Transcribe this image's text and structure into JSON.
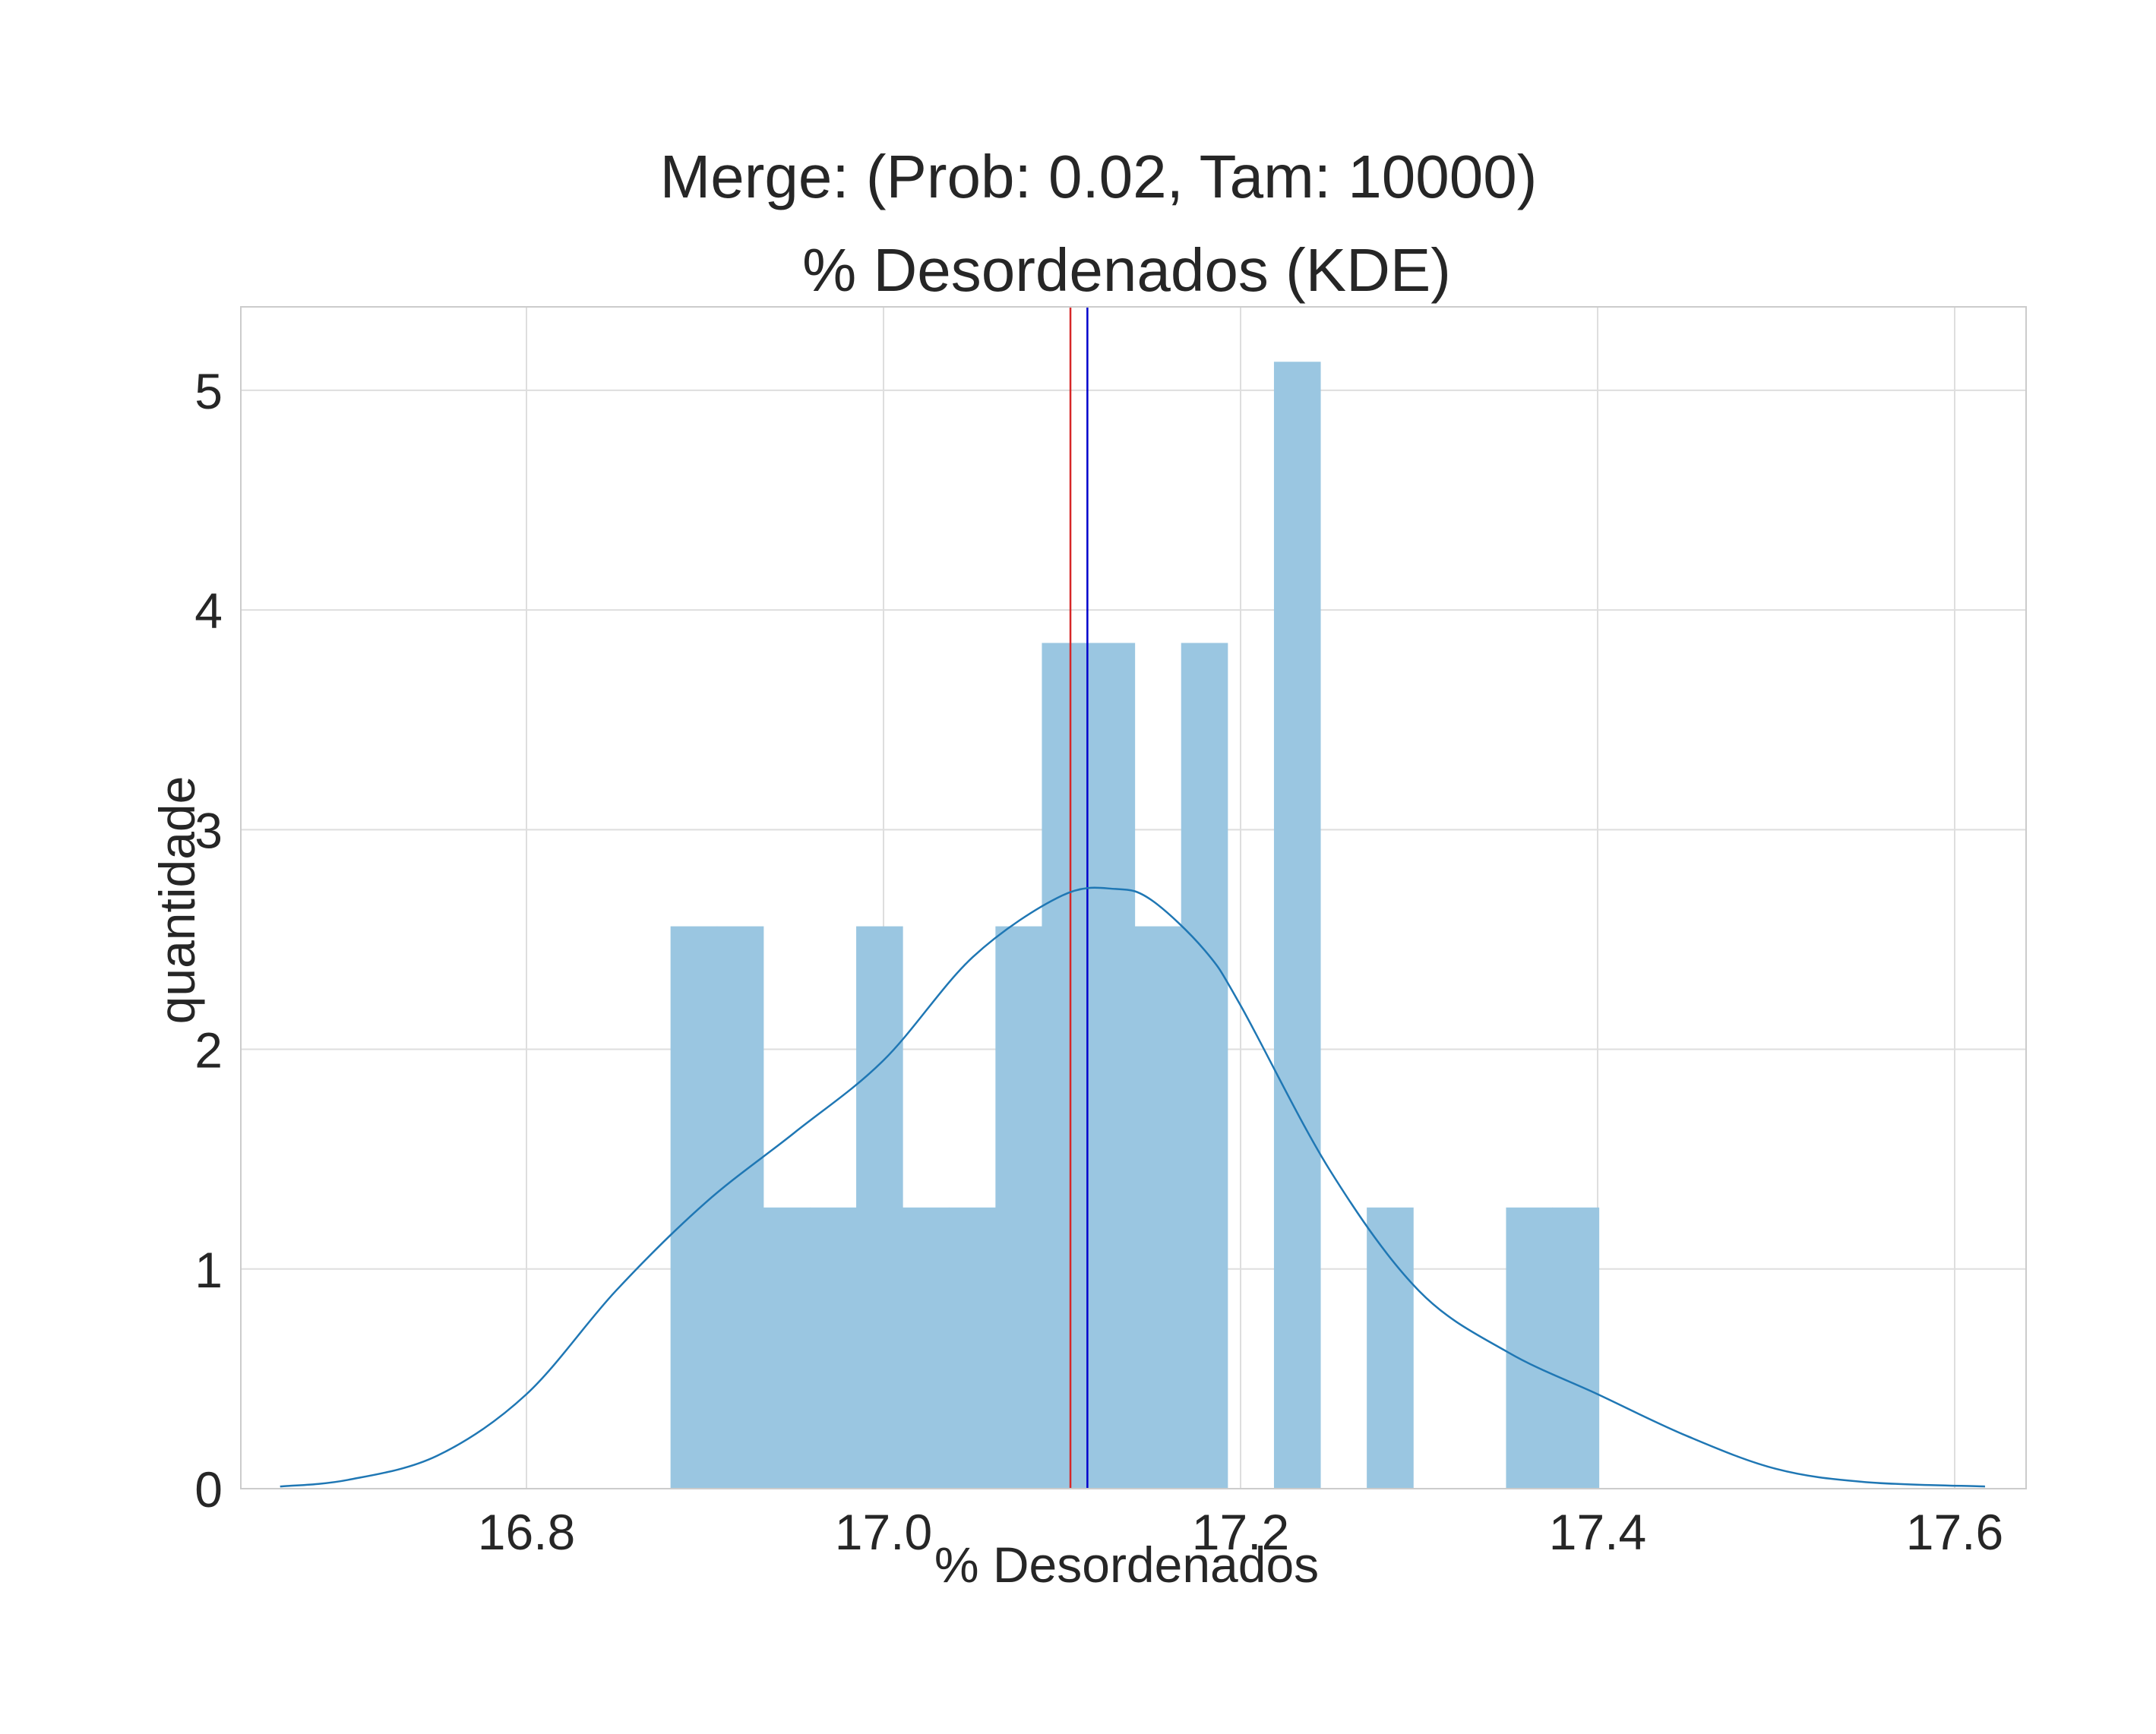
{
  "chart_data": {
    "type": "bar",
    "title": "Merge: (Prob: 0.02, Tam: 10000)",
    "subtitle": "% Desordenados (KDE)",
    "xlabel": "% Desordenados",
    "ylabel": "quantidade",
    "xlim": [
      16.64,
      17.64
    ],
    "ylim": [
      0,
      5.38
    ],
    "xticks": [
      16.8,
      17.0,
      17.2,
      17.4,
      17.6
    ],
    "xtick_labels": [
      "16.8",
      "17.0",
      "17.2",
      "17.4",
      "17.6"
    ],
    "yticks": [
      0,
      1,
      2,
      3,
      4,
      5
    ],
    "ytick_labels": [
      "0",
      "1",
      "2",
      "3",
      "4",
      "5"
    ],
    "grid": true,
    "histogram": {
      "bin_edges": [
        16.8807,
        16.9067,
        16.9327,
        16.9587,
        16.9847,
        17.0107,
        17.0367,
        17.0627,
        17.0887,
        17.1147,
        17.1407,
        17.1667,
        17.1927,
        17.2187,
        17.2447,
        17.2707,
        17.2967,
        17.3227,
        17.3487,
        17.3747,
        17.4007
      ],
      "values": [
        2.56,
        2.56,
        1.28,
        1.28,
        2.56,
        1.28,
        1.28,
        2.56,
        3.85,
        3.85,
        2.56,
        3.85,
        0,
        5.13,
        0,
        1.28,
        0,
        0,
        1.28,
        1.28
      ],
      "color": "#9ac6e1"
    },
    "kde": {
      "x": [
        16.662,
        16.7,
        16.75,
        16.8,
        16.85,
        16.9,
        16.95,
        17.0,
        17.05,
        17.1,
        17.13,
        17.15,
        17.18,
        17.2,
        17.25,
        17.3,
        17.35,
        17.4,
        17.45,
        17.5,
        17.55,
        17.617
      ],
      "y": [
        0.01,
        0.04,
        0.15,
        0.43,
        0.9,
        1.3,
        1.62,
        1.95,
        2.42,
        2.7,
        2.73,
        2.68,
        2.45,
        2.2,
        1.45,
        0.9,
        0.62,
        0.43,
        0.24,
        0.09,
        0.03,
        0.01
      ],
      "color": "#1f77b4"
    },
    "vlines": [
      {
        "x": 17.1047,
        "color": "#d62728"
      },
      {
        "x": 17.1142,
        "color": "#0000cc"
      }
    ]
  }
}
